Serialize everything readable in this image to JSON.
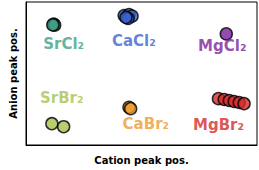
{
  "chart_data": {
    "type": "scatter",
    "xlabel": "Cation peak pos.",
    "ylabel": "Anion peak pos.",
    "xlim": [
      0,
      100
    ],
    "ylim": [
      0,
      100
    ],
    "tick_labels": false,
    "grid": false,
    "series": [
      {
        "name": "SrCl₂",
        "color": "#3d9e86",
        "x": [
          12.0,
          12.4,
          11.6
        ],
        "values": [
          84.5,
          83.8,
          84.0
        ]
      },
      {
        "name": "CaCl₂",
        "color": "#3b63d0",
        "x": [
          42.5,
          44.6,
          45.9,
          44.2,
          43.3
        ],
        "values": [
          90.5,
          91.2,
          90.1,
          88.5,
          89.2
        ]
      },
      {
        "name": "MgCl₂",
        "color": "#7a1e9c",
        "x": [
          86.7
        ],
        "values": [
          77.7
        ]
      },
      {
        "name": "SrBr₂",
        "color": "#a6c24d",
        "x": [
          11.2,
          16.3
        ],
        "values": [
          14.9,
          12.8
        ]
      },
      {
        "name": "CaBr₂",
        "color": "#ee9a2c",
        "x": [
          44.6,
          45.3
        ],
        "values": [
          26.4,
          25.4
        ]
      },
      {
        "name": "MgBr₂",
        "color": "#d42a2a",
        "x": [
          83.3,
          85.8,
          88.0,
          90.1,
          92.3,
          94.4
        ],
        "values": [
          32.4,
          31.8,
          31.1,
          30.4,
          29.7,
          28.9
        ]
      }
    ]
  }
}
